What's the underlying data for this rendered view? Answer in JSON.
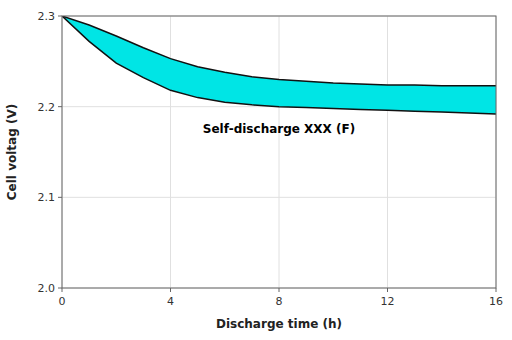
{
  "chart_data": {
    "type": "band",
    "xlabel": "Discharge time (h)",
    "ylabel": "Cell voltag (V)",
    "x": [
      0,
      1,
      2,
      3,
      4,
      5,
      6,
      7,
      8,
      9,
      10,
      11,
      12,
      13,
      14,
      15,
      16
    ],
    "series": [
      {
        "color": "#111111",
        "values": [
          2.3,
          2.29,
          2.278,
          2.265,
          2.253,
          2.244,
          2.238,
          2.233,
          2.23,
          2.228,
          2.226,
          2.225,
          2.224,
          2.224,
          2.223,
          2.223,
          2.223
        ]
      },
      {
        "color": "#111111",
        "values": [
          2.3,
          2.272,
          2.248,
          2.232,
          2.218,
          2.21,
          2.205,
          2.202,
          2.2,
          2.199,
          2.198,
          2.197,
          2.196,
          2.195,
          2.194,
          2.193,
          2.192
        ]
      }
    ],
    "color": "#00E5E5",
    "xlim": [
      0,
      16
    ],
    "ylim": [
      2.0,
      2.3
    ],
    "xticks": [
      0,
      4,
      8,
      12,
      16
    ],
    "yticks": [
      {
        "value": 2.0,
        "label": "2.0"
      },
      2.1,
      2.2,
      2.3
    ],
    "grid": true,
    "annotations": [
      {
        "text": "Self-discharge XXX (F)",
        "x": 8.0,
        "y": 2.175
      }
    ]
  }
}
